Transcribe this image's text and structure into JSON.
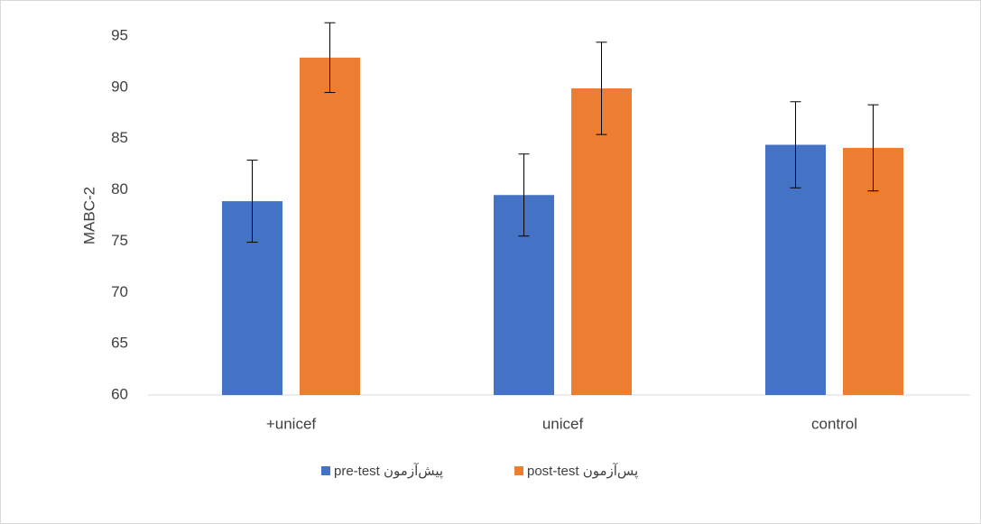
{
  "chart_data": {
    "type": "bar",
    "y_label": "MABC-2",
    "categories": [
      "+unicef",
      "unicef",
      "control"
    ],
    "series": [
      {
        "name": "pre-test پیش‌آزمون",
        "color": "#4472c4",
        "values": [
          78.9,
          79.5,
          84.4
        ],
        "errors": [
          4.0,
          4.0,
          4.2
        ]
      },
      {
        "name": "post-test پس‌آزمون",
        "color": "#ed7d31",
        "values": [
          92.9,
          89.9,
          84.1
        ],
        "errors": [
          3.4,
          4.5,
          4.2
        ]
      }
    ],
    "ylim": [
      60,
      95
    ],
    "yticks": [
      60,
      65,
      70,
      75,
      80,
      85,
      90,
      95
    ],
    "grid": false,
    "legend": "bottom"
  }
}
